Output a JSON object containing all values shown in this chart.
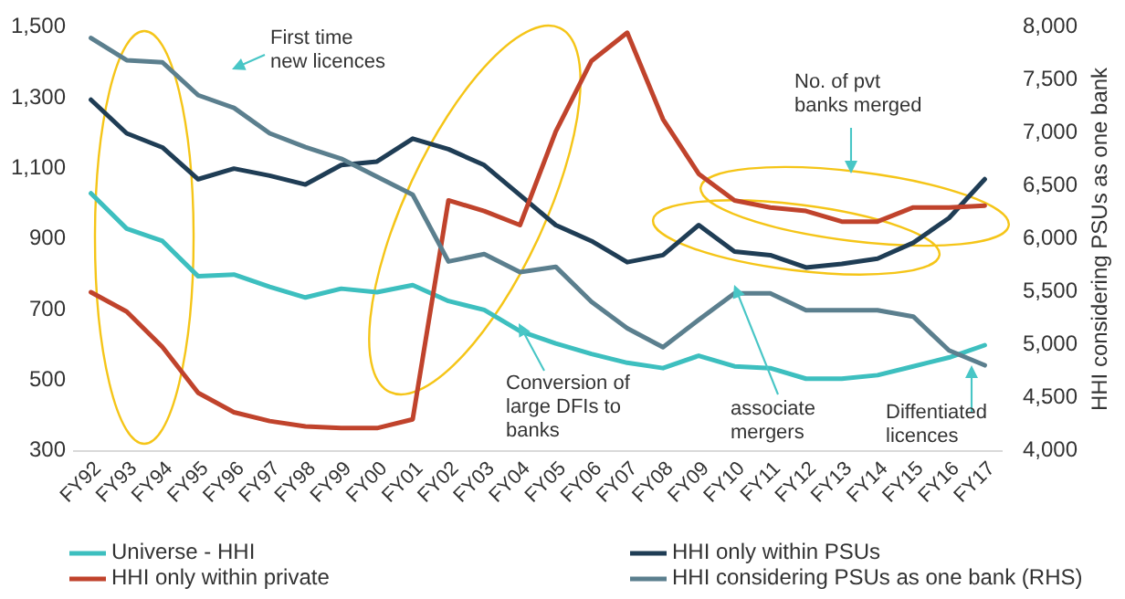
{
  "chart_data": {
    "type": "line",
    "categories": [
      "FY92",
      "FY93",
      "FY94",
      "FY95",
      "FY96",
      "FY97",
      "FY98",
      "FY99",
      "FY00",
      "FY01",
      "FY02",
      "FY03",
      "FY04",
      "FY05",
      "FY06",
      "FY07",
      "FY08",
      "FY09",
      "FY10",
      "FY11",
      "FY12",
      "FY13",
      "FY14",
      "FY15",
      "FY16",
      "FY17"
    ],
    "series": [
      {
        "name": "Universe - HHI",
        "color": "#3dbfbf",
        "values": [
          1030,
          930,
          895,
          795,
          800,
          765,
          735,
          760,
          750,
          770,
          725,
          700,
          640,
          605,
          575,
          550,
          535,
          570,
          540,
          535,
          505,
          505,
          515,
          540,
          565,
          600
        ]
      },
      {
        "name": "HHI only within PSUs",
        "color": "#1f3d55",
        "values": [
          1295,
          1200,
          1160,
          1070,
          1100,
          1080,
          1055,
          1110,
          1120,
          1185,
          1155,
          1110,
          1025,
          940,
          895,
          835,
          855,
          940,
          865,
          855,
          820,
          830,
          845,
          890,
          960,
          1070
        ]
      },
      {
        "name": "HHI only within private",
        "color": "#c0432c",
        "values": [
          750,
          695,
          595,
          465,
          410,
          385,
          370,
          365,
          365,
          390,
          1010,
          980,
          940,
          1205,
          1405,
          1485,
          1240,
          1085,
          1010,
          990,
          980,
          950,
          950,
          990,
          990,
          995
        ]
      },
      {
        "name": "HHI considering PSUs as one bank (RHS)",
        "color": "#5b7f8e",
        "axis": "y2",
        "values": [
          7900,
          7690,
          7670,
          7360,
          7240,
          7000,
          6870,
          6760,
          6590,
          6420,
          5790,
          5860,
          5690,
          5740,
          5410,
          5160,
          4980,
          5240,
          5490,
          5490,
          5330,
          5330,
          5330,
          5270,
          4950,
          4810
        ]
      }
    ],
    "ylim": [
      300,
      1500
    ],
    "yticks": [
      {
        "value": 300,
        "label": "300"
      },
      {
        "value": 500,
        "label": "500"
      },
      {
        "value": 700,
        "label": "700"
      },
      {
        "value": 900,
        "label": "900"
      },
      {
        "value": 1100,
        "label": "1,100"
      },
      {
        "value": 1300,
        "label": "1,300"
      },
      {
        "value": 1500,
        "label": "1,500"
      }
    ],
    "y2lim": [
      4000,
      8000
    ],
    "y2ticks": [
      {
        "value": 4000,
        "label": "4,000"
      },
      {
        "value": 4500,
        "label": "4,500"
      },
      {
        "value": 5000,
        "label": "5,000"
      },
      {
        "value": 5500,
        "label": "5,500"
      },
      {
        "value": 6000,
        "label": "6,000"
      },
      {
        "value": 6500,
        "label": "6,500"
      },
      {
        "value": 7000,
        "label": "7,000"
      },
      {
        "value": 7500,
        "label": "7,500"
      },
      {
        "value": 8000,
        "label": "8,000"
      }
    ],
    "y2label": "HHI considering PSUs as one bank",
    "annotations": [
      "First time new licences",
      "Conversion of large DFIs to banks",
      "associate mergers",
      "No. of pvt banks merged",
      "Diffentiated licences"
    ],
    "grid": false,
    "legend": "bottom",
    "marker": "none",
    "line_style": "solid"
  }
}
